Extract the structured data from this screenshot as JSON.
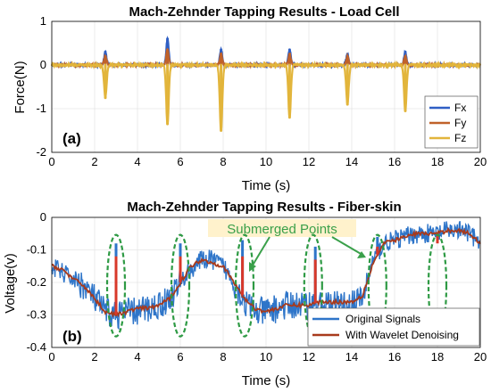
{
  "chart_data": [
    {
      "type": "line",
      "title": "Mach-Zehnder Tapping Results - Load Cell",
      "xlabel": "Time (s)",
      "ylabel": "Force(N)",
      "panel_label": "(a)",
      "xlim": [
        0,
        20
      ],
      "ylim": [
        -2,
        1
      ],
      "xticks": [
        0,
        2,
        4,
        6,
        8,
        10,
        12,
        14,
        16,
        18,
        20
      ],
      "yticks": [
        1,
        0,
        -1,
        -2
      ],
      "legend_position": "bottom-right",
      "grid": true,
      "baseline": 0,
      "tap_times": [
        2.5,
        5.4,
        7.9,
        11.1,
        13.8,
        16.5
      ],
      "series": [
        {
          "name": "Fx",
          "color": "#2f5fc4",
          "peaks": [
            0.3,
            0.6,
            0.35,
            0.35,
            0.25,
            0.3
          ]
        },
        {
          "name": "Fy",
          "color": "#c0622a",
          "peaks": [
            0.2,
            0.35,
            0.25,
            0.25,
            0.2,
            0.2
          ]
        },
        {
          "name": "Fz",
          "color": "#e2b53b",
          "peaks": [
            -0.75,
            -1.35,
            -1.5,
            -1.2,
            -0.9,
            -1.05
          ]
        }
      ]
    },
    {
      "type": "line",
      "title": "Mach-Zehnder Tapping Results - Fiber-skin",
      "xlabel": "Time (s)",
      "ylabel": "Voltage(v)",
      "panel_label": "(b)",
      "xlim": [
        0,
        20
      ],
      "ylim": [
        -0.4,
        0
      ],
      "xticks": [
        0,
        2,
        4,
        6,
        8,
        10,
        12,
        14,
        16,
        18,
        20
      ],
      "yticks": [
        0,
        -0.1,
        -0.2,
        -0.3,
        -0.4
      ],
      "legend_position": "bottom-right",
      "grid": true,
      "annotation": "Submerged Points",
      "circled_times": [
        3.0,
        6.0,
        9.0,
        12.2,
        15.2,
        18.0
      ],
      "series": [
        {
          "name": "Original Signals",
          "color": "#2e75c9",
          "x": [
            0,
            0.5,
            1,
            1.5,
            2,
            2.5,
            3,
            3.5,
            4,
            4.5,
            5,
            5.5,
            6,
            6.5,
            7,
            7.5,
            8,
            8.5,
            9,
            9.5,
            10,
            10.5,
            11,
            11.5,
            12,
            12.5,
            13,
            13.5,
            14,
            14.5,
            15,
            15.5,
            16,
            16.5,
            17,
            17.5,
            18,
            18.5,
            19,
            19.5,
            20
          ],
          "y": [
            -0.15,
            -0.17,
            -0.19,
            -0.21,
            -0.25,
            -0.29,
            -0.3,
            -0.29,
            -0.29,
            -0.28,
            -0.27,
            -0.25,
            -0.2,
            -0.16,
            -0.13,
            -0.13,
            -0.15,
            -0.2,
            -0.26,
            -0.29,
            -0.29,
            -0.28,
            -0.27,
            -0.27,
            -0.27,
            -0.27,
            -0.27,
            -0.27,
            -0.27,
            -0.25,
            -0.13,
            -0.08,
            -0.07,
            -0.06,
            -0.05,
            -0.05,
            -0.05,
            -0.04,
            -0.04,
            -0.05,
            -0.08
          ],
          "spikes": [
            [
              3.0,
              -0.08
            ],
            [
              6.0,
              -0.08
            ],
            [
              8.9,
              -0.07
            ],
            [
              12.3,
              -0.09
            ],
            [
              15.2,
              -0.06
            ],
            [
              18.0,
              -0.05
            ]
          ]
        },
        {
          "name": "With Wavelet Denoising",
          "color": "#a83a1c",
          "x": [
            0,
            0.5,
            1,
            1.5,
            2,
            2.5,
            3,
            3.5,
            4,
            4.5,
            5,
            5.5,
            6,
            6.5,
            7,
            7.5,
            8,
            8.5,
            9,
            9.5,
            10,
            10.5,
            11,
            11.5,
            12,
            12.5,
            13,
            13.5,
            14,
            14.5,
            15,
            15.5,
            16,
            16.5,
            17,
            17.5,
            18,
            18.5,
            19,
            19.5,
            20
          ],
          "y": [
            -0.15,
            -0.16,
            -0.19,
            -0.21,
            -0.25,
            -0.29,
            -0.3,
            -0.29,
            -0.28,
            -0.28,
            -0.27,
            -0.25,
            -0.2,
            -0.15,
            -0.13,
            -0.14,
            -0.15,
            -0.2,
            -0.25,
            -0.28,
            -0.29,
            -0.28,
            -0.27,
            -0.27,
            -0.27,
            -0.26,
            -0.26,
            -0.26,
            -0.26,
            -0.24,
            -0.14,
            -0.08,
            -0.07,
            -0.06,
            -0.05,
            -0.05,
            -0.05,
            -0.04,
            -0.04,
            -0.05,
            -0.08
          ],
          "spikes": [
            [
              3.0,
              -0.12
            ],
            [
              6.0,
              -0.12
            ],
            [
              8.9,
              -0.12
            ],
            [
              12.3,
              -0.13
            ],
            [
              15.2,
              -0.09
            ],
            [
              18.0,
              -0.08
            ]
          ]
        }
      ]
    }
  ]
}
